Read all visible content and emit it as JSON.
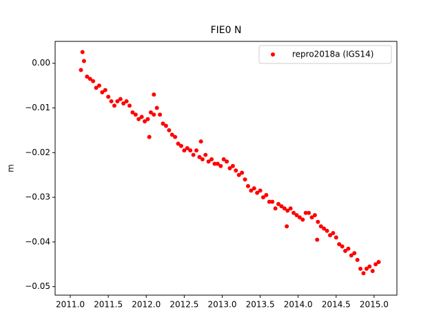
{
  "chart_data": {
    "type": "scatter",
    "title": "FIE0 N",
    "ylabel": "m",
    "xlim": [
      2010.8,
      2015.3
    ],
    "ylim": [
      -0.0519,
      0.0049
    ],
    "xticks": [
      {
        "value": 2011,
        "label": "2011.0"
      },
      {
        "value": 2011.5,
        "label": "2011.5"
      },
      {
        "value": 2012,
        "label": "2012.0"
      },
      {
        "value": 2012.5,
        "label": "2012.5"
      },
      {
        "value": 2013,
        "label": "2013.0"
      },
      {
        "value": 2013.5,
        "label": "2013.5"
      },
      {
        "value": 2014,
        "label": "2014.0"
      },
      {
        "value": 2014.5,
        "label": "2014.5"
      },
      {
        "value": 2015,
        "label": "2015.0"
      }
    ],
    "yticks": [
      {
        "value": 0,
        "label": "0.00"
      },
      {
        "value": -0.01,
        "label": "−0.01"
      },
      {
        "value": -0.02,
        "label": "−0.02"
      },
      {
        "value": -0.03,
        "label": "−0.03"
      },
      {
        "value": -0.04,
        "label": "−0.04"
      },
      {
        "value": -0.05,
        "label": "−0.05"
      }
    ],
    "legend": "upper right",
    "grid": false,
    "series": [
      {
        "name": "repro2018a (IGS14)",
        "color": "#ff0000",
        "x": [
          2011.14,
          2011.18,
          2011.22,
          2011.26,
          2011.3,
          2011.34,
          2011.38,
          2011.42,
          2011.46,
          2011.5,
          2011.54,
          2011.58,
          2011.62,
          2011.66,
          2011.7,
          2011.74,
          2011.78,
          2011.82,
          2011.86,
          2011.9,
          2011.94,
          2011.98,
          2012.02,
          2012.06,
          2012.1,
          2012.14,
          2012.18,
          2012.22,
          2012.26,
          2012.3,
          2012.34,
          2012.38,
          2012.42,
          2012.46,
          2012.5,
          2012.54,
          2012.58,
          2012.62,
          2012.66,
          2012.7,
          2012.74,
          2012.78,
          2012.82,
          2012.86,
          2012.9,
          2012.94,
          2012.98,
          2013.02,
          2013.06,
          2013.1,
          2013.14,
          2013.18,
          2013.22,
          2013.26,
          2013.3,
          2013.34,
          2013.38,
          2013.42,
          2013.46,
          2013.5,
          2013.54,
          2013.58,
          2013.62,
          2013.66,
          2013.7,
          2013.74,
          2013.78,
          2013.82,
          2013.86,
          2013.9,
          2013.94,
          2013.98,
          2014.02,
          2014.06,
          2014.1,
          2014.14,
          2014.18,
          2014.22,
          2014.26,
          2014.3,
          2014.34,
          2014.38,
          2014.42,
          2014.46,
          2014.5,
          2014.54,
          2014.58,
          2014.62,
          2014.66,
          2014.7,
          2014.74,
          2014.78,
          2014.82,
          2014.86,
          2014.9,
          2014.94,
          2014.98,
          2015.02,
          2015.06,
          2011.16,
          2012.1,
          2012.72,
          2012.04,
          2014.25,
          2013.85
        ],
        "values": [
          -0.0015,
          0.0005,
          -0.003,
          -0.0035,
          -0.004,
          -0.0055,
          -0.005,
          -0.0065,
          -0.006,
          -0.0075,
          -0.0085,
          -0.0095,
          -0.0085,
          -0.008,
          -0.009,
          -0.0085,
          -0.0095,
          -0.011,
          -0.0115,
          -0.0125,
          -0.012,
          -0.013,
          -0.0125,
          -0.011,
          -0.0115,
          -0.01,
          -0.0115,
          -0.0135,
          -0.014,
          -0.015,
          -0.016,
          -0.0165,
          -0.018,
          -0.0185,
          -0.0195,
          -0.019,
          -0.0195,
          -0.0205,
          -0.0195,
          -0.021,
          -0.0215,
          -0.0205,
          -0.022,
          -0.0215,
          -0.0225,
          -0.0225,
          -0.023,
          -0.0215,
          -0.022,
          -0.0235,
          -0.023,
          -0.024,
          -0.025,
          -0.0245,
          -0.026,
          -0.0275,
          -0.0285,
          -0.028,
          -0.029,
          -0.0285,
          -0.03,
          -0.0295,
          -0.031,
          -0.031,
          -0.0325,
          -0.0315,
          -0.032,
          -0.0325,
          -0.033,
          -0.0325,
          -0.0335,
          -0.034,
          -0.0345,
          -0.035,
          -0.0335,
          -0.0335,
          -0.0345,
          -0.034,
          -0.0355,
          -0.0365,
          -0.037,
          -0.0375,
          -0.0385,
          -0.038,
          -0.039,
          -0.0405,
          -0.041,
          -0.042,
          -0.0415,
          -0.043,
          -0.0425,
          -0.044,
          -0.046,
          -0.047,
          -0.046,
          -0.0455,
          -0.0465,
          -0.045,
          -0.0445,
          0.0025,
          -0.007,
          -0.0175,
          -0.0165,
          -0.0395,
          -0.0365
        ]
      }
    ]
  }
}
